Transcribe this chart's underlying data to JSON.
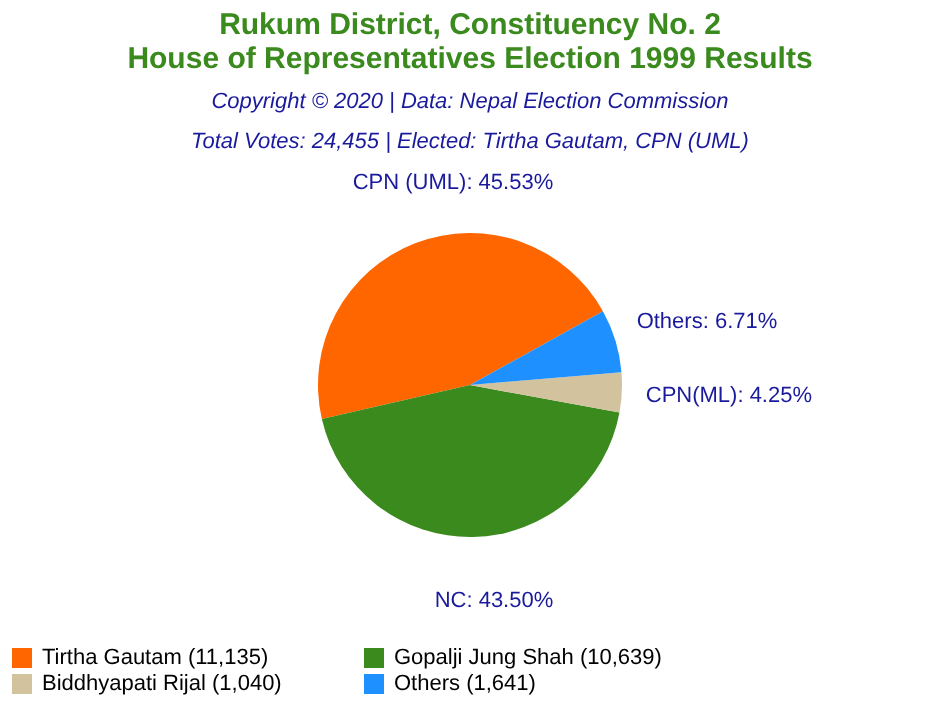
{
  "chart_data": {
    "type": "pie",
    "title": "Rukum District, Constituency No. 2\nHouse of Representatives Election 1999 Results",
    "subtitle": "Copyright © 2020 | Data: Nepal Election Commission\nTotal Votes: 24,455 | Elected: Tirtha Gautam, CPN (UML)",
    "categories": [
      "Tirtha Gautam (11,135)",
      "Gopalji Jung Shah (10,639)",
      "Biddhyapati Rijal (1,040)",
      "Others (1,641)"
    ],
    "values": [
      45.53,
      43.5,
      4.25,
      6.71
    ],
    "value_labels": [
      "CPN (UML): 45.53%",
      "NC: 43.50%",
      "CPN(ML): 4.25%",
      "Others: 6.71%"
    ],
    "colors": [
      "#ff6600",
      "#3a8a1e",
      "#d2c29d",
      "#1e90ff"
    ],
    "legend": "bottom"
  }
}
